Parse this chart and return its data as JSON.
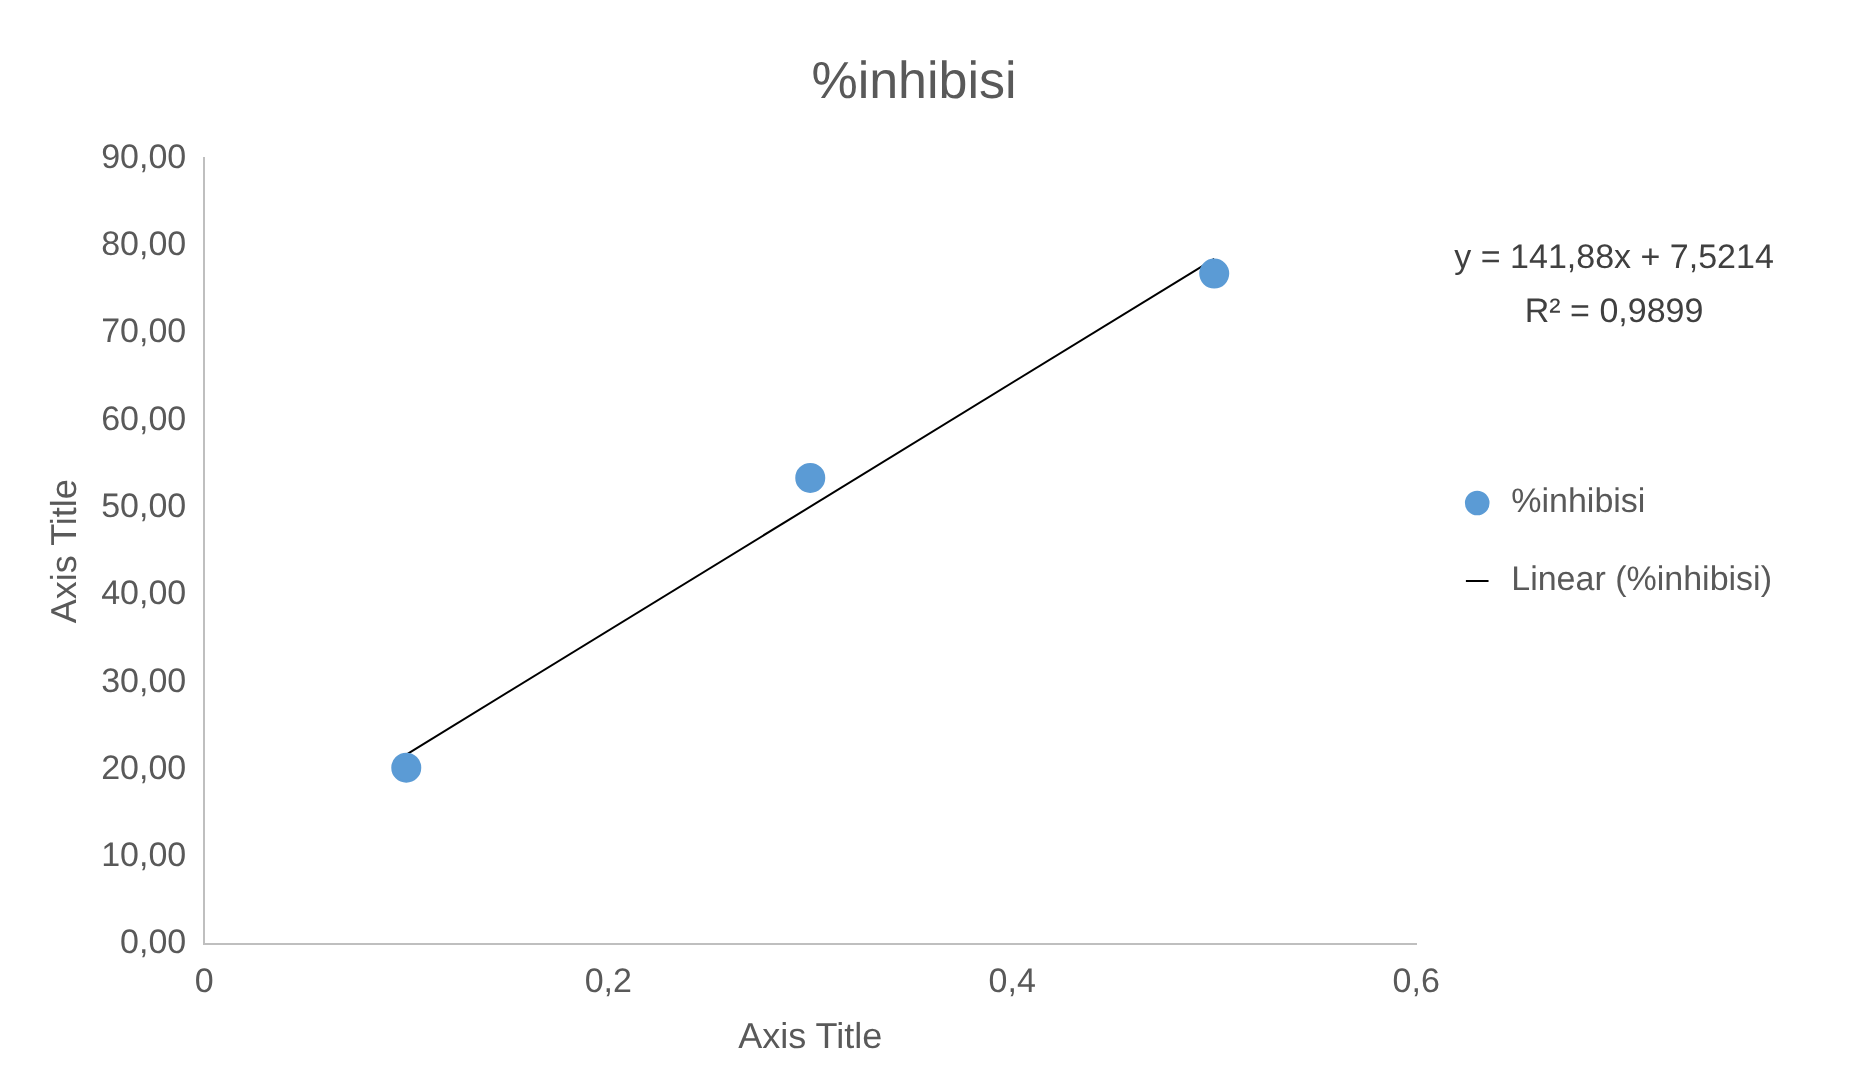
{
  "chart_data": {
    "type": "scatter",
    "title": "%inhibisi",
    "xlabel": "Axis Title",
    "ylabel": "Axis Title",
    "series": [
      {
        "name": "%inhibisi",
        "color": "#5b9bd5",
        "marker": "circle",
        "x": [
          0.1,
          0.3,
          0.5
        ],
        "values": [
          20.2,
          53.4,
          76.8
        ]
      },
      {
        "name": "Linear (%inhibisi)",
        "type": "line",
        "marker": "none",
        "color": "#000000",
        "x": [
          0.1,
          0.5
        ],
        "values": [
          21.7,
          78.5
        ]
      }
    ],
    "xlim": [
      0,
      0.6
    ],
    "xticks": [
      0,
      {
        "value": 0.2,
        "label": "0,2"
      },
      {
        "value": 0.4,
        "label": "0,4"
      },
      {
        "value": 0.6,
        "label": "0,6"
      }
    ],
    "ylim": [
      0,
      90
    ],
    "yticks": [
      {
        "value": 0,
        "label": "0,00"
      },
      {
        "value": 10,
        "label": "10,00"
      },
      {
        "value": 20,
        "label": "20,00"
      },
      {
        "value": 30,
        "label": "30,00"
      },
      {
        "value": 40,
        "label": "40,00"
      },
      {
        "value": 50,
        "label": "50,00"
      },
      {
        "value": 60,
        "label": "60,00"
      },
      {
        "value": 70,
        "label": "70,00"
      },
      {
        "value": 80,
        "label": "80,00"
      },
      {
        "value": 90,
        "label": "90,00"
      }
    ],
    "annotations": [
      "y = 141,88x + 7,5214",
      "R² = 0,9899"
    ],
    "legend": "right",
    "grid": false
  }
}
